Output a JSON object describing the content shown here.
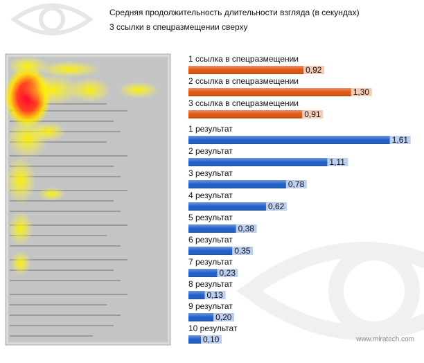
{
  "chart_data": {
    "type": "bar",
    "title": "Средняя продолжительность длительности взгляда (в секундах)",
    "subtitle": "3 ссылки в спецразмещении сверху",
    "source": "www.miratech.com",
    "categories": [
      "1 ссылка в спецразмещении",
      "2 ссылка в спецразмещении",
      "3 ссылка в спецразмещении",
      "1 результат",
      "2 результат",
      "3 результат",
      "4 результат",
      "5 результат",
      "6 результат",
      "7 результат",
      "8 результат",
      "9 результат",
      "10 результат"
    ],
    "values": [
      0.92,
      1.3,
      0.91,
      1.61,
      1.11,
      0.78,
      0.62,
      0.38,
      0.35,
      0.23,
      0.13,
      0.2,
      0.1
    ],
    "value_labels": [
      "0,92",
      "1,30",
      "0,91",
      "1,61",
      "1,11",
      "0,78",
      "0,62",
      "0,38",
      "0,35",
      "0,23",
      "0,13",
      "0,20",
      "0,10"
    ],
    "colors": [
      "#e0560f",
      "#e0560f",
      "#e0560f",
      "#1f5fc6",
      "#1f5fc6",
      "#1f5fc6",
      "#1f5fc6",
      "#1f5fc6",
      "#1f5fc6",
      "#1f5fc6",
      "#1f5fc6",
      "#1f5fc6",
      "#1f5fc6"
    ],
    "xlim": [
      0,
      1.8
    ]
  }
}
